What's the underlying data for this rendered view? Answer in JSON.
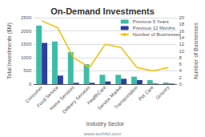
{
  "chart_data": {
    "type": "bar",
    "title": "On-Demand Investments",
    "xlabel": "Industry Sector",
    "ylabel": "Total Investments ($M)",
    "y2label": "Number of Businesses",
    "categories": [
      "Consumer",
      "Food Service",
      "Home Services",
      "Delivery Services",
      "HealthCare",
      "Service Market",
      "Transportation",
      "Pet Care",
      "Grocery"
    ],
    "series": [
      {
        "name": "Previous 5 Years",
        "color": "#3dbda7",
        "values": [
          2200,
          1600,
          1200,
          750,
          350,
          350,
          280,
          150,
          60
        ]
      },
      {
        "name": "Previous 12 Months",
        "color": "#2b3f9e",
        "values": [
          1550,
          320,
          50,
          50,
          100,
          200,
          150,
          20,
          20
        ]
      },
      {
        "name": "Number of Businesses",
        "type": "line",
        "axis": "y2",
        "color": "#f5c000",
        "marker": "none",
        "values": [
          19,
          17,
          8,
          5,
          12,
          11,
          5,
          4,
          5
        ]
      }
    ],
    "ylim": [
      0,
      2500
    ],
    "yticks": [
      0,
      500,
      1000,
      1500,
      2000,
      2500
    ],
    "y2lim": [
      0,
      20
    ],
    "y2ticks": [
      0,
      2,
      4,
      6,
      8,
      10,
      12,
      14,
      16,
      18,
      20
    ],
    "grid": true,
    "legend": "upper right",
    "annotations": [
      "www.tech4ci.com"
    ]
  }
}
